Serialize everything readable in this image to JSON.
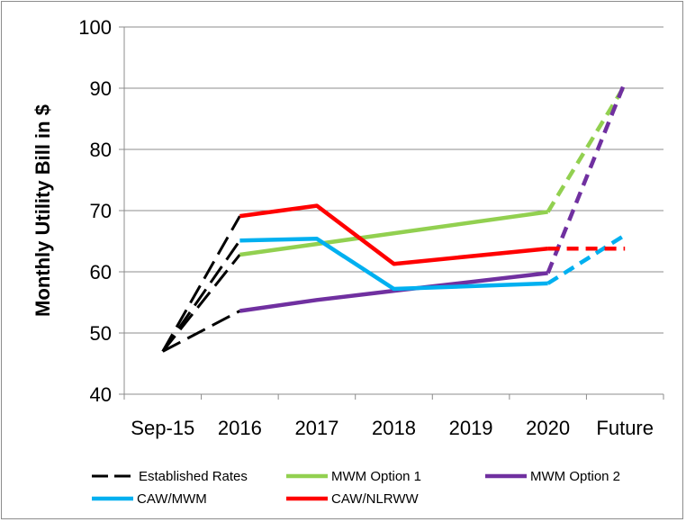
{
  "chart_data": {
    "type": "line",
    "title": "",
    "xlabel": "",
    "ylabel": "Monthly Utility Bill in $",
    "categories": [
      "Sep-15",
      "2016",
      "2017",
      "2018",
      "2019",
      "2020",
      "Future"
    ],
    "yticks": [
      "40",
      "50",
      "60",
      "70",
      "80",
      "90",
      "100"
    ],
    "ylim": [
      40,
      100
    ],
    "grid": "horizontal",
    "legend_position": "bottom",
    "legend": [
      {
        "name": "Established Rates",
        "color": "#000000"
      },
      {
        "name": "MWM Option 1",
        "color": "#92d050"
      },
      {
        "name": "MWM Option 2",
        "color": "#7030a0"
      },
      {
        "name": "CAW/MWM",
        "color": "#00b0f0"
      },
      {
        "name": "CAW/NLRWW",
        "color": "#ff0000"
      }
    ],
    "series": [
      {
        "name": "MWM Option 1",
        "color": "#92d050",
        "solid": [
          [
            1.5,
            62.8
          ],
          [
            5.5,
            69.8
          ]
        ],
        "dashed": [
          [
            5.5,
            69.8
          ],
          [
            6.5,
            90.5
          ]
        ]
      },
      {
        "name": "MWM Option 2",
        "color": "#7030a0",
        "solid": [
          [
            1.5,
            53.6
          ],
          [
            2.5,
            55.4
          ],
          [
            3.5,
            56.9
          ],
          [
            5.5,
            59.8
          ]
        ],
        "dashed": [
          [
            5.5,
            59.8
          ],
          [
            6.5,
            91.0
          ]
        ]
      },
      {
        "name": "CAW/MWM",
        "color": "#00b0f0",
        "solid": [
          [
            1.5,
            65.1
          ],
          [
            2.5,
            65.4
          ],
          [
            3.5,
            57.2
          ],
          [
            5.5,
            58.1
          ]
        ],
        "dashed": [
          [
            5.5,
            58.1
          ],
          [
            6.5,
            66.0
          ]
        ]
      },
      {
        "name": "CAW/NLRWW",
        "color": "#ff0000",
        "solid": [
          [
            1.5,
            69.1
          ],
          [
            2.5,
            70.8
          ],
          [
            3.5,
            61.3
          ],
          [
            5.5,
            63.8
          ]
        ],
        "dashed": [
          [
            5.5,
            63.8
          ],
          [
            6.5,
            63.8
          ]
        ]
      }
    ],
    "established_rates": {
      "name": "Established Rates",
      "color": "#000000",
      "origin": [
        0.5,
        47.0
      ],
      "targets": [
        [
          1.5,
          69.1
        ],
        [
          1.5,
          65.1
        ],
        [
          1.5,
          62.8
        ],
        [
          1.5,
          53.6
        ]
      ]
    }
  }
}
